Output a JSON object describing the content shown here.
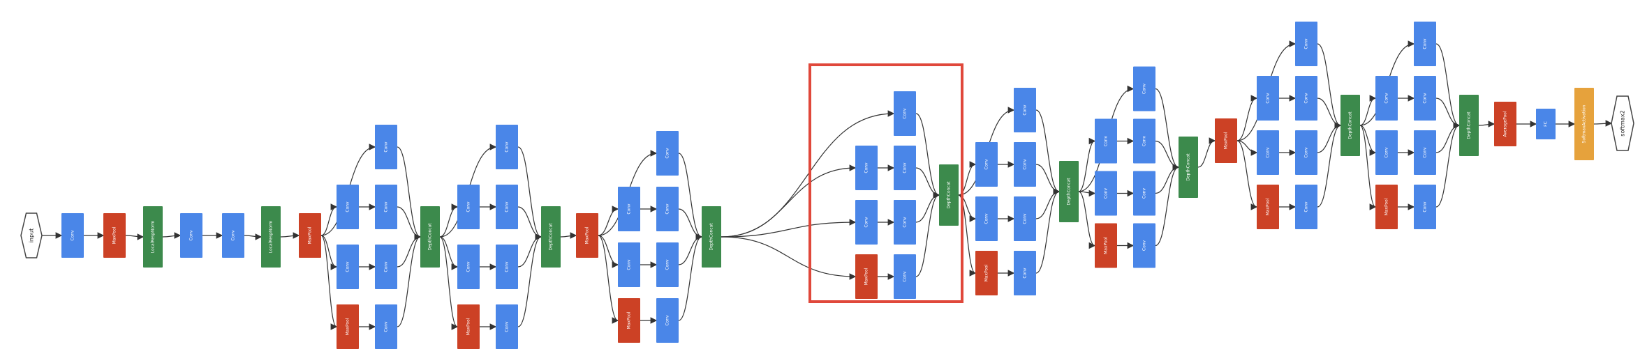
{
  "colors": {
    "conv": "#4a86e8",
    "pool": "#cc4125",
    "concat": "#3c8a4c",
    "softmax": "#e6a23c",
    "highlight": "#e0483b",
    "edge": "#333333"
  },
  "labels": {
    "input": "input",
    "output": "softmax2",
    "conv": "Conv",
    "maxpool": "MaxPool",
    "concat": "DepthConcat",
    "lrn": "LocalRespNorm",
    "avgpool": "AveragePool",
    "fc": "FC",
    "softmax": "SoftmaxActivation"
  }
}
